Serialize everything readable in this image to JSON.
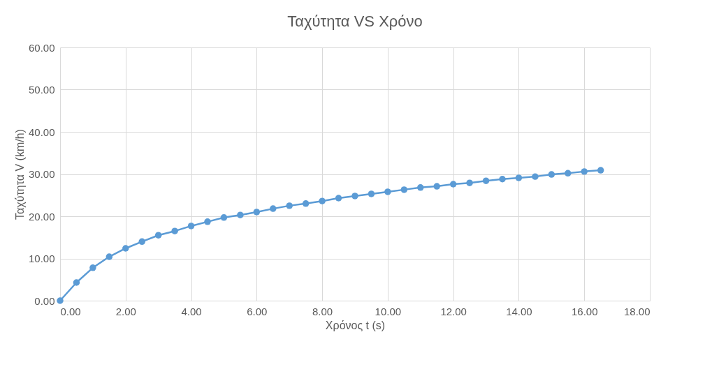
{
  "chart_data": {
    "type": "line",
    "title": "Ταχύτητα VS Χρόνο",
    "xlabel": "Χρόνος t (s)",
    "ylabel": "Ταχύτητα V (km/h)",
    "x": [
      0,
      0.5,
      1,
      1.5,
      2,
      2.5,
      3,
      3.5,
      4,
      4.5,
      5,
      5.5,
      6,
      6.5,
      7,
      7.5,
      8,
      8.5,
      9,
      9.5,
      10,
      10.5,
      11,
      11.5,
      12,
      12.5,
      13,
      13.5,
      14,
      14.5,
      15,
      15.5,
      16,
      16.5
    ],
    "series": [
      {
        "color": "#5b9bd5",
        "values": [
          0,
          4.3,
          7.8,
          10.4,
          12.4,
          14.0,
          15.5,
          16.5,
          17.7,
          18.7,
          19.7,
          20.3,
          21.0,
          21.8,
          22.5,
          23.0,
          23.6,
          24.3,
          24.8,
          25.3,
          25.8,
          26.3,
          26.8,
          27.1,
          27.6,
          27.9,
          28.4,
          28.8,
          29.1,
          29.4,
          29.9,
          30.2,
          30.6,
          30.9
        ]
      }
    ],
    "xlim": [
      0,
      18
    ],
    "ylim": [
      0,
      60
    ],
    "xticks": [
      {
        "value": 0,
        "label": "0.00"
      },
      {
        "value": 2,
        "label": "2.00"
      },
      {
        "value": 4,
        "label": "4.00"
      },
      {
        "value": 6,
        "label": "6.00"
      },
      {
        "value": 8,
        "label": "8.00"
      },
      {
        "value": 10,
        "label": "10.00"
      },
      {
        "value": 12,
        "label": "12.00"
      },
      {
        "value": 14,
        "label": "14.00"
      },
      {
        "value": 16,
        "label": "16.00"
      },
      {
        "value": 18,
        "label": "18.00"
      }
    ],
    "yticks": [
      {
        "value": 0,
        "label": "0.00"
      },
      {
        "value": 10,
        "label": "10.00"
      },
      {
        "value": 20,
        "label": "20.00"
      },
      {
        "value": 30,
        "label": "30.00"
      },
      {
        "value": 40,
        "label": "40.00"
      },
      {
        "value": 50,
        "label": "50.00"
      },
      {
        "value": 60,
        "label": "60.00"
      }
    ],
    "grid": true,
    "marker": "circle",
    "line_style": "solid"
  }
}
